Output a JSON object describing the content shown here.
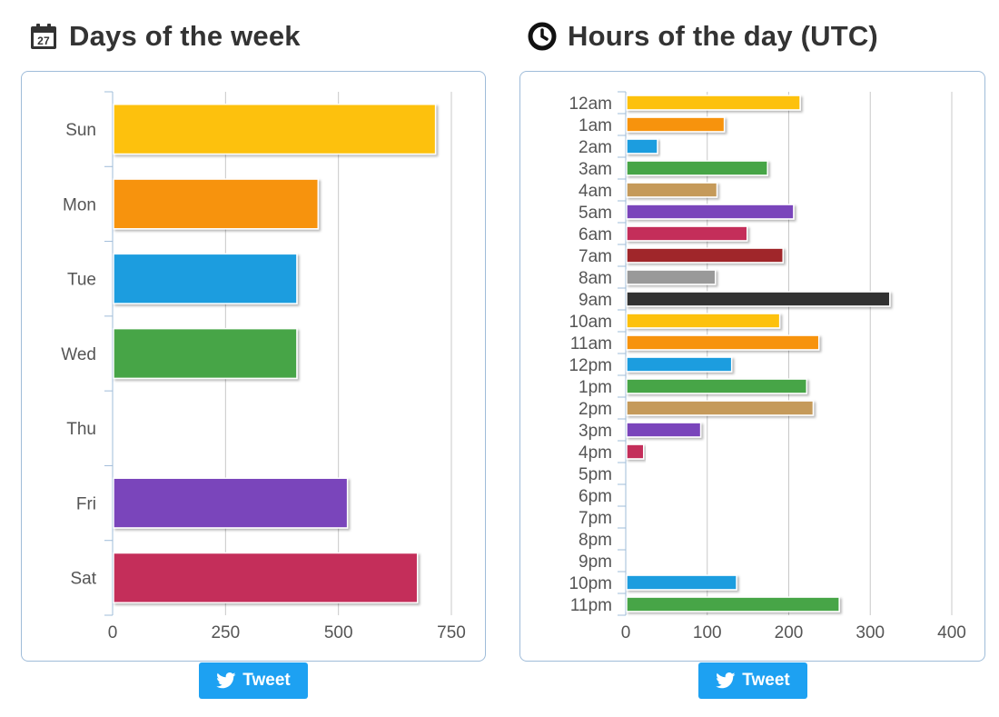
{
  "panels": {
    "left": {
      "title": "Days of the week",
      "icon": "calendar-icon",
      "calendar_day": "27",
      "tweet_label": "Tweet"
    },
    "right": {
      "title": "Hours of the day (UTC)",
      "icon": "clock-icon",
      "tweet_label": "Tweet"
    }
  },
  "chart_data": [
    {
      "type": "bar",
      "orientation": "horizontal",
      "title": "Days of the week",
      "categories": [
        "Sun",
        "Mon",
        "Tue",
        "Wed",
        "Thu",
        "Fri",
        "Sat"
      ],
      "values": [
        715,
        455,
        408,
        408,
        0,
        520,
        675
      ],
      "colors": [
        "#fdc110",
        "#f7930f",
        "#1b9ddf",
        "#46a547",
        "#c59a5a",
        "#7a45bb",
        "#c42d5a"
      ],
      "xlim": [
        0,
        750
      ],
      "xticks": [
        "0",
        "250",
        "500",
        "750"
      ],
      "xtick_values": [
        0,
        250,
        500,
        750
      ],
      "grid": true
    },
    {
      "type": "bar",
      "orientation": "horizontal",
      "title": "Hours of the day (UTC)",
      "categories": [
        "12am",
        "1am",
        "2am",
        "3am",
        "4am",
        "5am",
        "6am",
        "7am",
        "8am",
        "9am",
        "10am",
        "11am",
        "12pm",
        "1pm",
        "2pm",
        "3pm",
        "4pm",
        "5pm",
        "6pm",
        "7pm",
        "8pm",
        "9pm",
        "10pm",
        "11pm"
      ],
      "values": [
        214,
        121,
        39,
        174,
        112,
        206,
        149,
        193,
        110,
        324,
        189,
        237,
        130,
        222,
        230,
        92,
        22,
        0,
        0,
        0,
        0,
        0,
        136,
        262
      ],
      "colors": [
        "#fdc110",
        "#f7930f",
        "#1b9ddf",
        "#46a547",
        "#c59a5a",
        "#7a45bb",
        "#c42d5a",
        "#a0282a",
        "#999999",
        "#333333"
      ],
      "xlim": [
        0,
        400
      ],
      "xticks": [
        "0",
        "100",
        "200",
        "300",
        "400"
      ],
      "xtick_values": [
        0,
        100,
        200,
        300,
        400
      ],
      "grid": true
    }
  ]
}
